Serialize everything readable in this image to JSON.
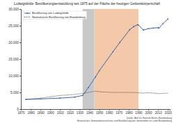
{
  "chart_data": {
    "type": "line",
    "title": "Ludwigsfelde: Bevölkerungsentwicklung seit 1875 auf der Fläche der heutigen Gebietskörperschaft",
    "x": [
      1875,
      1890,
      1910,
      1925,
      1933,
      1939,
      1946,
      1950,
      1964,
      1971,
      1981,
      1985,
      1989,
      1990,
      1995,
      2000,
      2005,
      2010,
      2011,
      2015,
      2020
    ],
    "series": [
      {
        "name": "Bevölkerung von Ludwigsfelde",
        "color": "#3a67a8",
        "marker": "circle",
        "line_style": "solid",
        "values": [
          2900,
          3050,
          3300,
          3600,
          4100,
          6500,
          9600,
          11500,
          17200,
          20000,
          23800,
          24700,
          25300,
          25200,
          23700,
          24100,
          24300,
          24400,
          24300,
          25600,
          27000
        ]
      },
      {
        "name": "Normalisierte Bevölkerung von Brandenburg",
        "color": "#333333",
        "marker": "none",
        "line_style": "dotted",
        "values": [
          2900,
          3300,
          4100,
          4400,
          4700,
          5000,
          5400,
          5200,
          5000,
          5000,
          5000,
          5000,
          4900,
          4900,
          4800,
          4900,
          4800,
          4700,
          4600,
          4700,
          4800
        ]
      }
    ],
    "periods": [
      {
        "from": 1933,
        "to": 1945,
        "color": "#c8c8c8"
      },
      {
        "from": 1945,
        "to": 1990,
        "color": "#f4c9aa"
      }
    ],
    "xlim": [
      1870,
      2022
    ],
    "xticks": [
      1870,
      1880,
      1890,
      1900,
      1910,
      1920,
      1930,
      1940,
      1950,
      1960,
      1970,
      1980,
      1990,
      2000,
      2010,
      2020
    ],
    "ylim": [
      0,
      30000
    ],
    "yticks": [
      0,
      {
        "value": 5000,
        "label": "5,000"
      },
      {
        "value": 10000,
        "label": "10,000"
      },
      {
        "value": 15000,
        "label": "15,000"
      },
      {
        "value": 20000,
        "label": "20,000"
      },
      {
        "value": 25000,
        "label": "25,000"
      },
      {
        "value": 30000,
        "label": "30,000"
      }
    ],
    "grid": false,
    "legend": "upper left",
    "source": [
      "Quelle: Amt für Statistik Berlin-Brandenburg",
      "Historisches Gemeindeverzeichnis und Bevölkerung der Gemeinden im Land Brandenburg"
    ]
  }
}
